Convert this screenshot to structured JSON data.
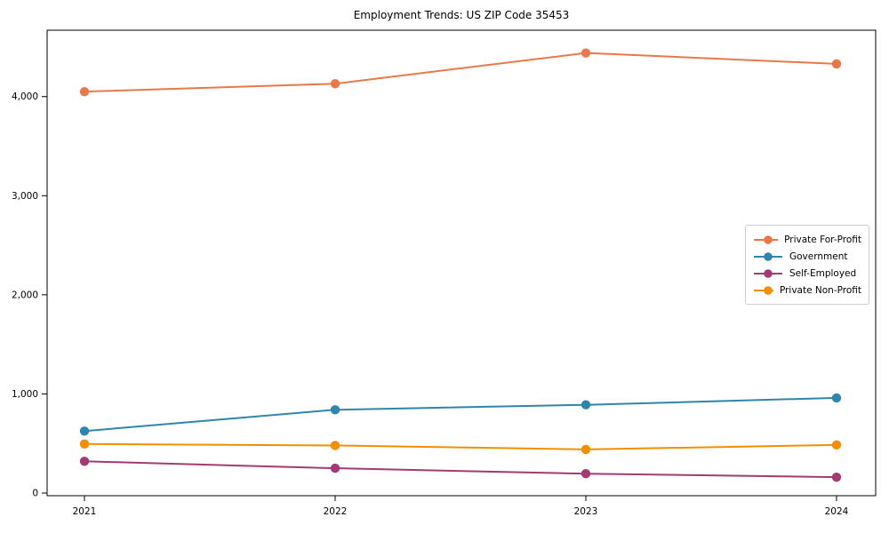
{
  "figure": {
    "background": "#ffffff",
    "plot_border_color": "#000000",
    "tick_color": "#000000",
    "text_color": "#000000",
    "legend_border_color": "#cccccc"
  },
  "chart_data": {
    "type": "line",
    "title": "Employment Trends: US ZIP Code 35453",
    "xlabel": "",
    "ylabel": "",
    "x": [
      2021,
      2022,
      2023,
      2024
    ],
    "x_tick_labels": [
      "2021",
      "2022",
      "2023",
      "2024"
    ],
    "y_ticks": [
      0,
      1000,
      2000,
      3000,
      4000
    ],
    "y_tick_labels": [
      "0",
      "1,000",
      "2,000",
      "3,000",
      "4,000"
    ],
    "ylim": [
      -27,
      4670
    ],
    "grid": false,
    "legend_position": "center-right",
    "marker": "circle",
    "series": [
      {
        "name": "Private For-Profit",
        "color": "#E8784A",
        "values": [
          4050,
          4130,
          4440,
          4330
        ]
      },
      {
        "name": "Government",
        "color": "#2E86AB",
        "values": [
          625,
          840,
          890,
          960
        ]
      },
      {
        "name": "Self-Employed",
        "color": "#A23B72",
        "values": [
          320,
          250,
          195,
          160
        ]
      },
      {
        "name": "Private Non-Profit",
        "color": "#F18F01",
        "values": [
          495,
          480,
          440,
          485
        ]
      }
    ]
  }
}
